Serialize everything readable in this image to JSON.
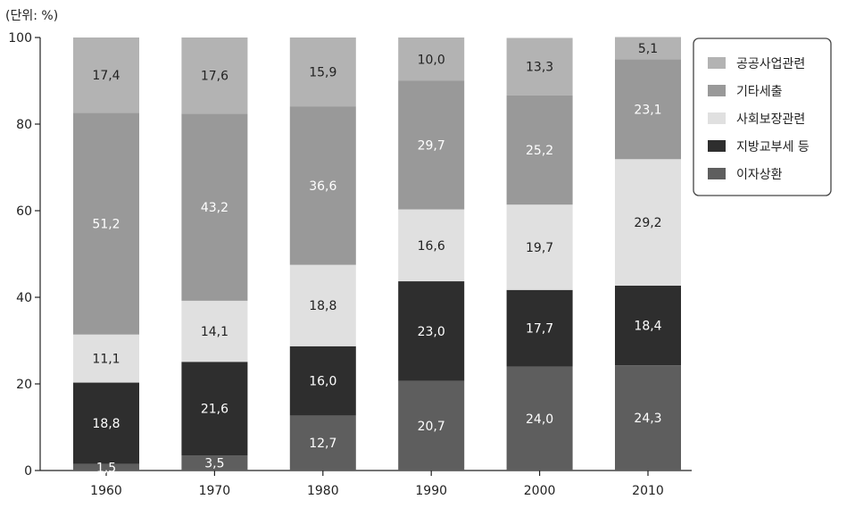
{
  "chart_data": {
    "type": "bar",
    "stacked": true,
    "unit_label": "(단위: %)",
    "categories": [
      "1960",
      "1970",
      "1980",
      "1990",
      "2000",
      "2010"
    ],
    "ylim": [
      0,
      100
    ],
    "yticks": [
      0,
      20,
      40,
      60,
      80,
      100
    ],
    "legend_position": "right",
    "series": [
      {
        "name": "이자상환",
        "color": "#5e5e5e",
        "text_color": "#ffffff",
        "labels": [
          "1,5",
          "3,5",
          "12,7",
          "20,7",
          "24,0",
          "24,3"
        ],
        "values": [
          1.5,
          3.5,
          12.7,
          20.7,
          24.0,
          24.3
        ]
      },
      {
        "name": "지방교부세 등",
        "color": "#2e2e2e",
        "text_color": "#ffffff",
        "labels": [
          "18,8",
          "21,6",
          "16,0",
          "23,0",
          "17,7",
          "18,4"
        ],
        "values": [
          18.8,
          21.6,
          16.0,
          23.0,
          17.7,
          18.4
        ]
      },
      {
        "name": "사회보장관련",
        "color": "#e0e0e0",
        "text_color": "#222222",
        "labels": [
          "11,1",
          "14,1",
          "18,8",
          "16,6",
          "19,7",
          "29,2"
        ],
        "values": [
          11.1,
          14.1,
          18.8,
          16.6,
          19.7,
          29.2
        ]
      },
      {
        "name": "기타세출",
        "color": "#999999",
        "text_color": "#ffffff",
        "labels": [
          "51,2",
          "43,2",
          "36,6",
          "29,7",
          "25,2",
          "23,1"
        ],
        "values": [
          51.2,
          43.2,
          36.6,
          29.7,
          25.2,
          23.1
        ]
      },
      {
        "name": "공공사업관련",
        "color": "#b3b3b3",
        "text_color": "#222222",
        "labels": [
          "17,4",
          "17,6",
          "15,9",
          "10,0",
          "13,3",
          "5,1"
        ],
        "values": [
          17.4,
          17.6,
          15.9,
          10.0,
          13.3,
          5.1
        ]
      }
    ]
  }
}
